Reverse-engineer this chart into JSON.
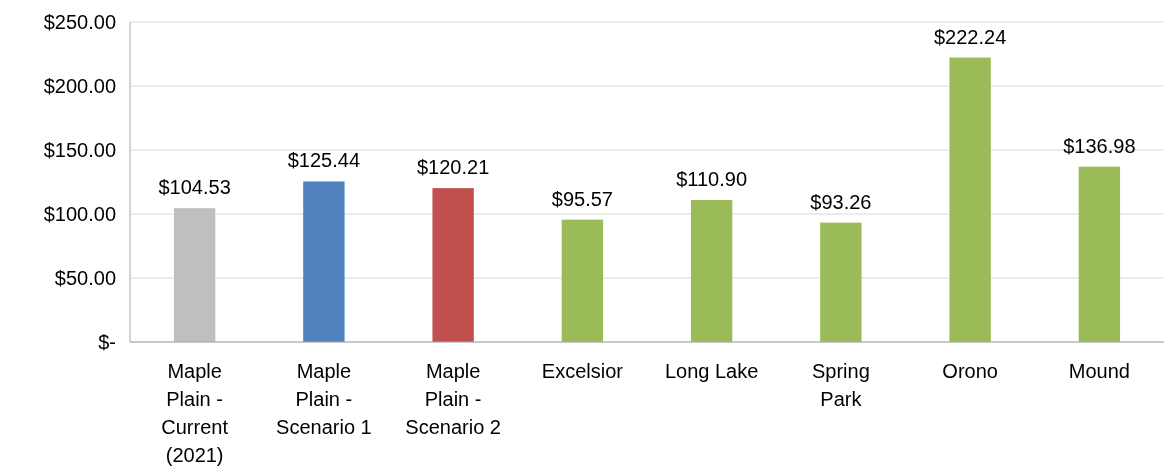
{
  "chart_data": {
    "type": "bar",
    "categories": [
      "Maple Plain - Current (2021)",
      "Maple Plain - Scenario 1",
      "Maple Plain - Scenario 2",
      "Excelsior",
      "Long Lake",
      "Spring Park",
      "Orono",
      "Mound"
    ],
    "values": [
      104.53,
      125.44,
      120.21,
      95.57,
      110.9,
      93.26,
      222.24,
      136.98
    ],
    "colors": [
      "#bfbfbf",
      "#4f81bd",
      "#c0504d",
      "#9bbb59",
      "#9bbb59",
      "#9bbb59",
      "#9bbb59",
      "#9bbb59"
    ],
    "value_labels": [
      "$104.53",
      "$125.44",
      "$120.21",
      "$95.57",
      "$110.90",
      "$93.26",
      "$222.24",
      "$136.98"
    ],
    "ylim": [
      0,
      250
    ],
    "yticks": [
      {
        "value": 0,
        "label": "$-"
      },
      {
        "value": 50,
        "label": "$50.00"
      },
      {
        "value": 100,
        "label": "$100.00"
      },
      {
        "value": 150,
        "label": "$150.00"
      },
      {
        "value": 200,
        "label": "$200.00"
      },
      {
        "value": 250,
        "label": "$250.00"
      }
    ],
    "grid": "y"
  }
}
